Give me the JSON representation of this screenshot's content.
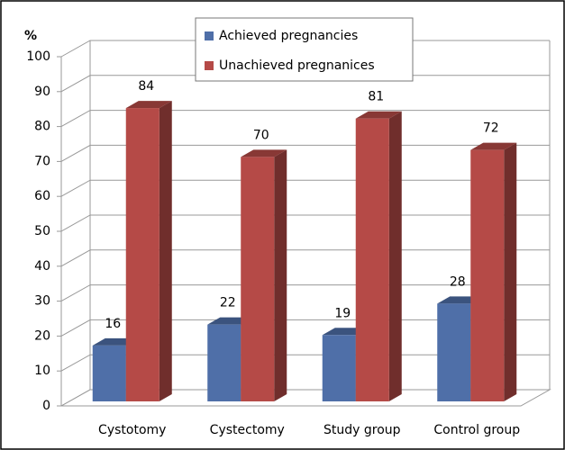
{
  "chart_data": {
    "type": "bar3d",
    "y_label": "%",
    "categories": [
      "Cystotomy",
      "Cystectomy",
      "Study  group",
      "Control  group"
    ],
    "series": [
      {
        "name": "Achieved pregnancies",
        "color": "#4f6fa8",
        "values": [
          16,
          22,
          19,
          28
        ]
      },
      {
        "name": "Unachieved pregnanices",
        "color": "#b54a47",
        "values": [
          84,
          70,
          81,
          72
        ]
      }
    ],
    "ylim": [
      0,
      100
    ],
    "yticks": [
      0,
      10,
      20,
      30,
      40,
      50,
      60,
      70,
      80,
      90,
      100
    ],
    "grid": true
  }
}
